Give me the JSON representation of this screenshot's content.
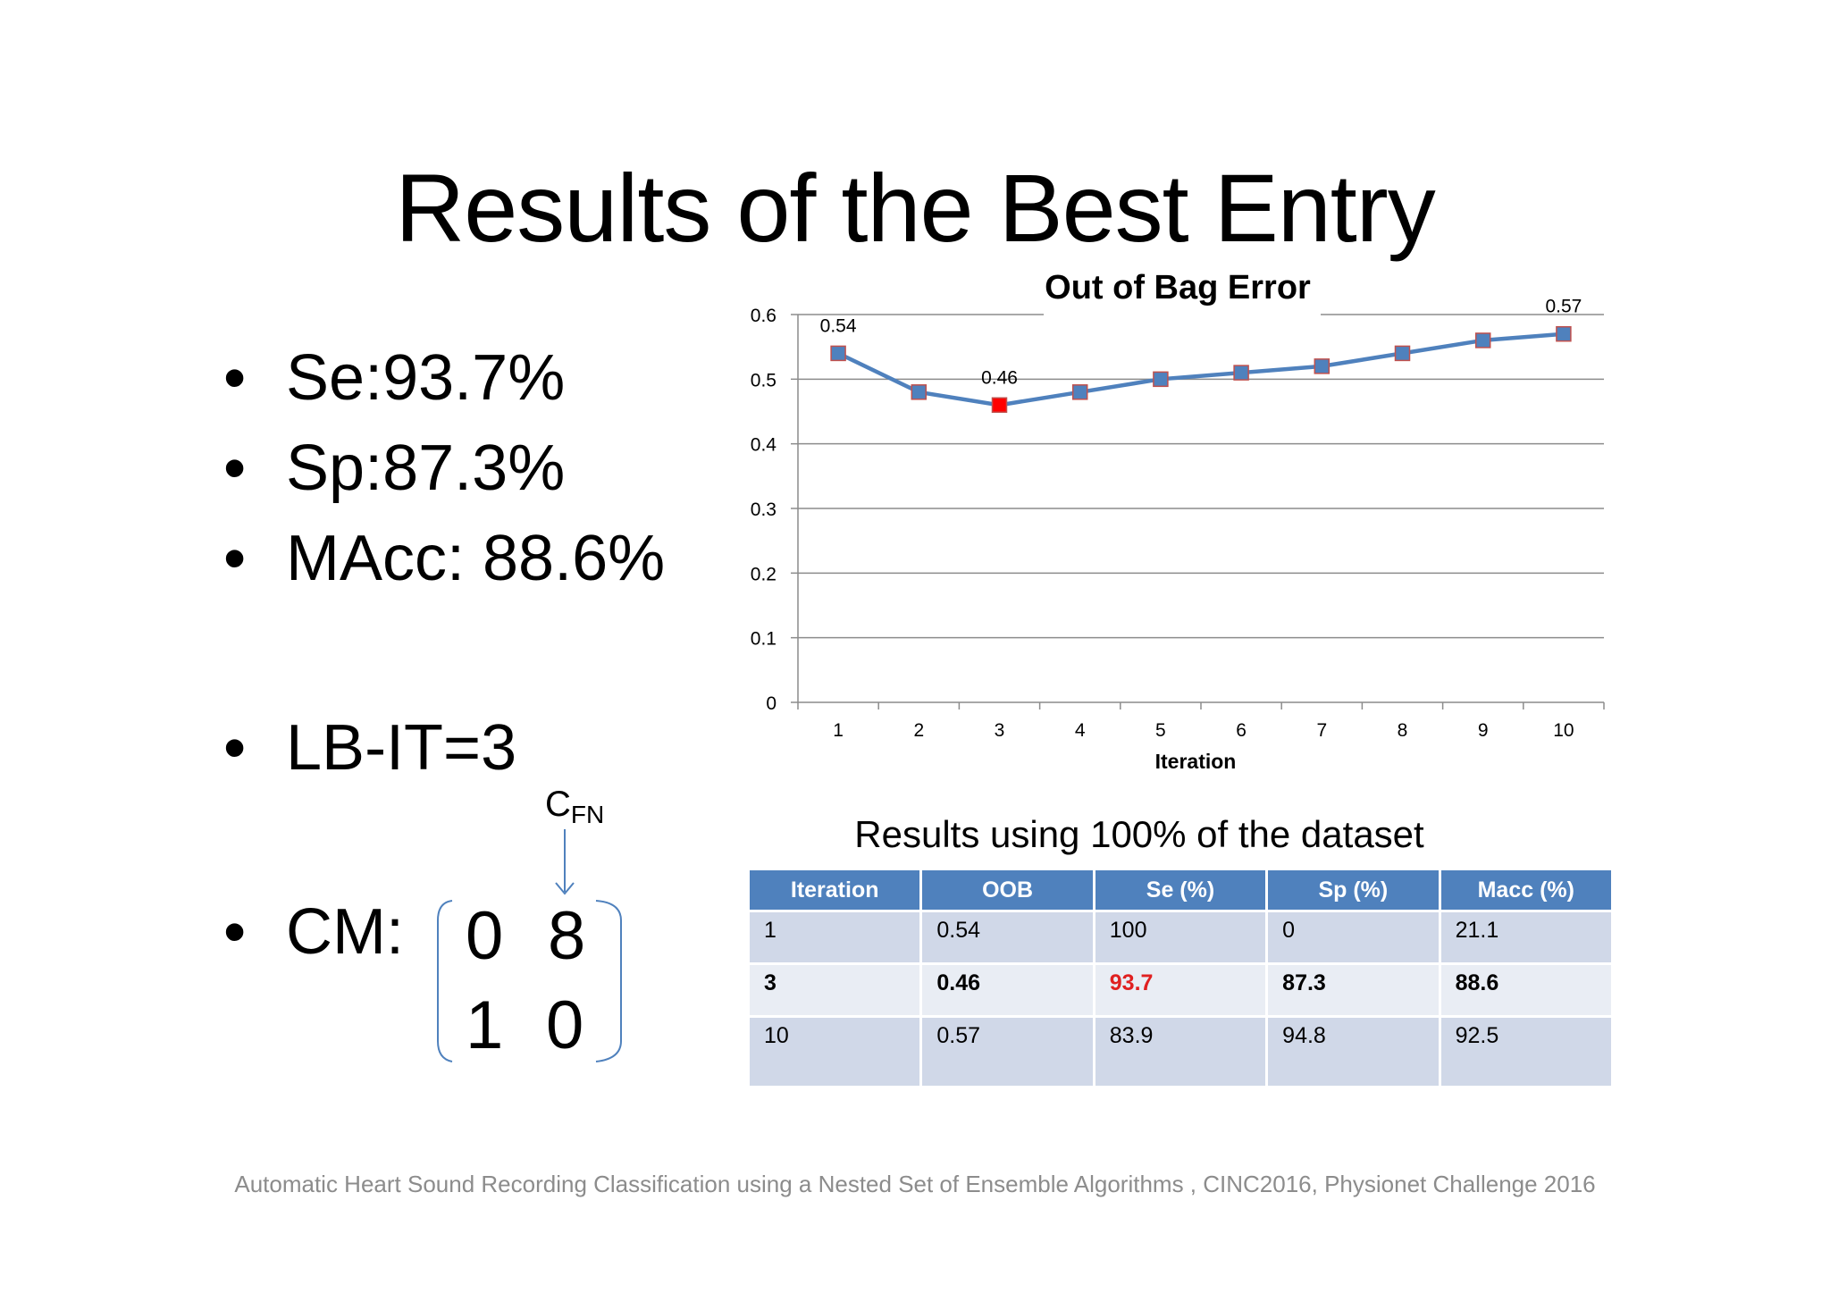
{
  "slide": {
    "title": "Results of the Best Entry",
    "footer": "Automatic Heart Sound Recording Classification using a Nested Set of Ensemble Algorithms , CINC2016, Physionet Challenge 2016"
  },
  "bullets": {
    "se": "Se:93.7%",
    "sp": "Sp:87.3%",
    "macc": "MAcc: 88.6%",
    "lbit": "LB-IT=3",
    "cm": "CM:",
    "dot": "•"
  },
  "confusion_matrix": {
    "label_main": "C",
    "label_sub": "FN",
    "cells": [
      [
        "0",
        "8"
      ],
      [
        "1",
        "0"
      ]
    ]
  },
  "chart_data": {
    "type": "line",
    "title": "Out of Bag Error",
    "xlabel": "Iteration",
    "ylabel": "",
    "categories": [
      "1",
      "2",
      "3",
      "4",
      "5",
      "6",
      "7",
      "8",
      "9",
      "10"
    ],
    "series": [
      {
        "values": [
          0.54,
          0.48,
          0.46,
          0.48,
          0.5,
          0.51,
          0.52,
          0.54,
          0.56,
          0.57
        ]
      }
    ],
    "yticks": [
      "0",
      "0.1",
      "0.2",
      "0.3",
      "0.4",
      "0.5",
      "0.6"
    ],
    "ylim": [
      0,
      0.6
    ],
    "grid": true,
    "legend": "none",
    "data_labels": [
      {
        "index": 0,
        "text": "0.54"
      },
      {
        "index": 2,
        "text": "0.46"
      },
      {
        "index": 9,
        "text": "0.57"
      }
    ],
    "highlight_index": 2,
    "colors": {
      "line": "#4f81bd",
      "marker": "#4f81bd",
      "marker_edge": "#c0504d",
      "highlight": "#ff0000",
      "grid": "#8c8c8c"
    }
  },
  "table": {
    "caption": "Results using 100% of the dataset",
    "headers": [
      "Iteration",
      "OOB",
      "Se (%)",
      "Sp (%)",
      "Macc (%)"
    ],
    "rows": [
      [
        "1",
        "0.54",
        "100",
        "0",
        "21.1"
      ],
      [
        "3",
        "0.46",
        "93.7",
        "87.3",
        "88.6"
      ],
      [
        "10",
        "0.57",
        "83.9",
        "94.8",
        "92.5"
      ]
    ],
    "highlight_color": "#e02020"
  }
}
